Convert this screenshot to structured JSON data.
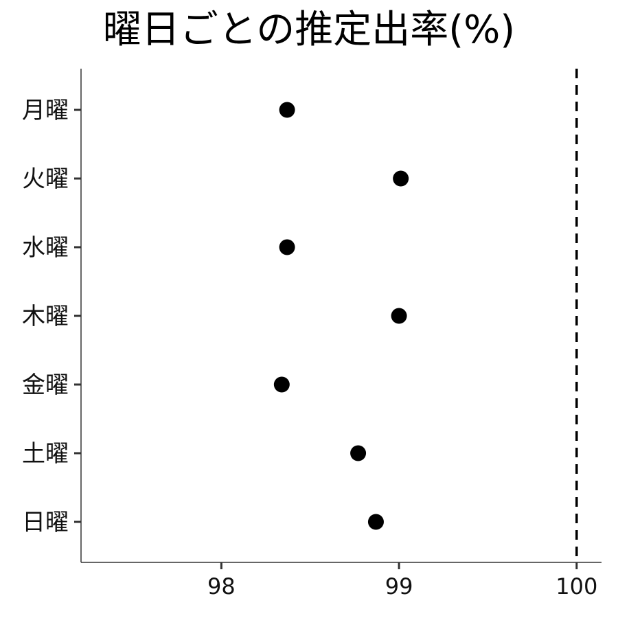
{
  "chart_data": {
    "type": "scatter",
    "title": "曜日ごとの推定出率(%)",
    "xlabel": "",
    "ylabel": "",
    "categories": [
      "月曜",
      "火曜",
      "水曜",
      "木曜",
      "金曜",
      "土曜",
      "日曜"
    ],
    "values": [
      98.37,
      99.01,
      98.37,
      99.0,
      98.34,
      98.77,
      98.87
    ],
    "xlim": [
      97.21,
      100.14
    ],
    "xticks": [
      98,
      99,
      100
    ],
    "reference_line": {
      "x": 100,
      "style": "dashed"
    },
    "grid": false,
    "legend": "none"
  }
}
